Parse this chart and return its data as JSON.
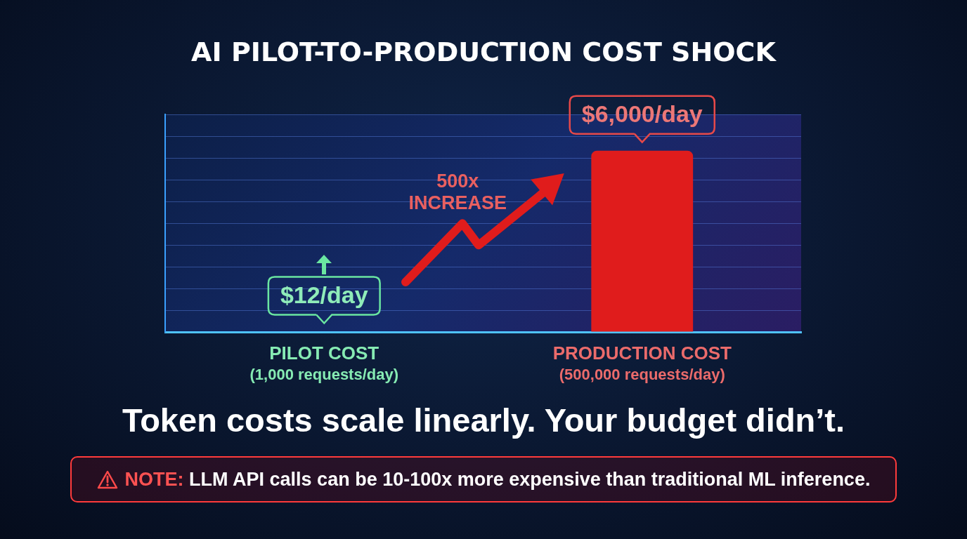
{
  "chart_data": {
    "type": "bar",
    "title": "AI PILOT-TO-PRODUCTION COST SHOCK",
    "categories": [
      "PILOT COST\n(1,000 requests/day)",
      "PRODUCTION COST\n(500,000 requests/day)"
    ],
    "values": [
      12,
      6000
    ],
    "colors": [
      "#45e08a",
      "#e01c1c"
    ],
    "value_labels": [
      "$12/day",
      "$6,000/day"
    ],
    "ylim": [
      0,
      7200
    ],
    "yticks": [
      {
        "value": 0,
        "label": null
      },
      {
        "value": 720,
        "label": null
      },
      {
        "value": 1440,
        "label": null
      },
      {
        "value": 2160,
        "label": null
      },
      {
        "value": 2880,
        "label": null
      },
      {
        "value": 3600,
        "label": null
      },
      {
        "value": 4320,
        "label": null
      },
      {
        "value": 5040,
        "label": null
      },
      {
        "value": 5760,
        "label": null
      },
      {
        "value": 6480,
        "label": null
      },
      {
        "value": 7200,
        "label": null
      }
    ],
    "annotations": [
      "500x INCREASE",
      "Token costs scale linearly. Your budget didn’t.",
      "NOTE: LLM API calls can be 10-100x more expensive than traditional ML inference."
    ],
    "grid": "y",
    "tick_labels": "x"
  }
}
